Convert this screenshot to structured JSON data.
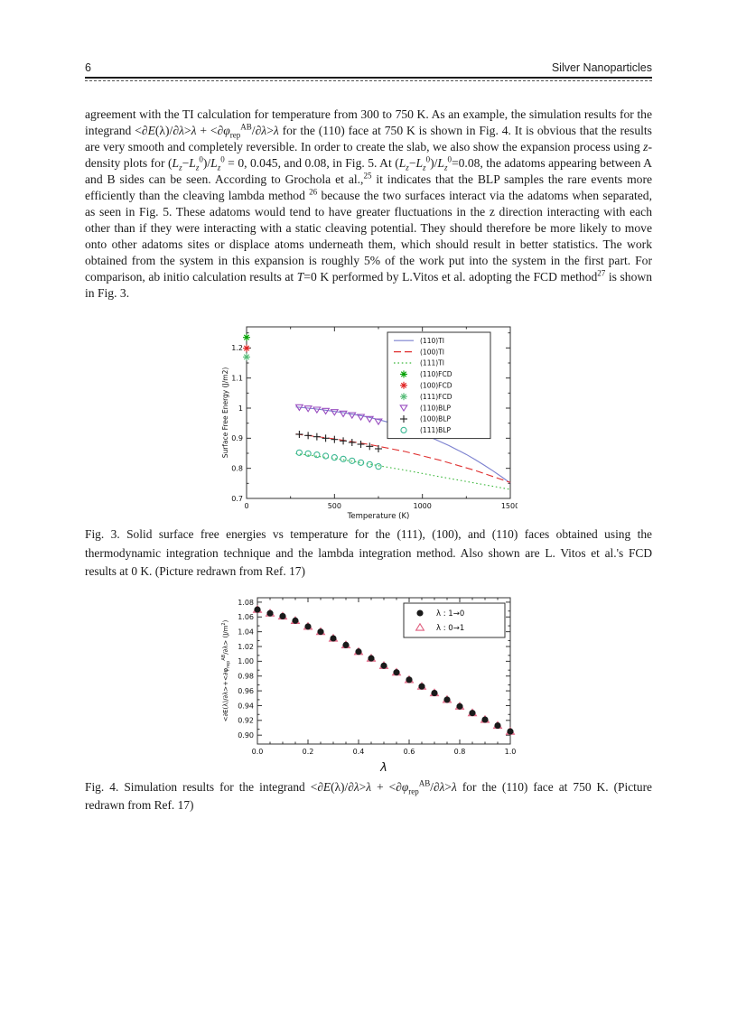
{
  "page": {
    "number": "6",
    "running_title": "Silver Nanoparticles"
  },
  "body": {
    "paragraph_html": "agreement with the TI calculation for temperature from 300 to 750 K. As an example, the simulation results for the integrand &lt;<i>&#8706;E</i>(&#955;)/<i>&#8706;&#955;</i>&gt;<i>&#955;</i> + &lt;<i>&#8706;&#966;</i><sub>rep</sub><sup>AB</sup>/<i>&#8706;&#955;</i>&gt;<i>&#955;</i> for the (110) face at 750 K is shown in Fig. 4. It is obvious that the results are very smooth and completely reversible. In order to create the slab, we also show the expansion process using <i>z</i>-density plots for (<i>L<sub>z</sub></i>&#8722;<i>L<sub>z</sub></i><sup>0</sup>)/<i>L<sub>z</sub></i><sup>0</sup> = 0, 0.045, and 0.08, in Fig. 5. At (<i>L<sub>z</sub></i>&#8722;<i>L<sub>z</sub></i><sup>0</sup>)/<i>L<sub>z</sub></i><sup>0</sup>=0.08, the adatoms appearing between A and B sides can be seen. According to Grochola et al.,<sup>25</sup> it indicates that the BLP samples the rare events more efficiently than the cleaving lambda method <sup>26</sup> because the two surfaces interact via the adatoms when separated, as seen in Fig. 5. These adatoms would tend to have greater fluctuations in the z direction interacting with each other than if they were interacting with a static cleaving potential. They should therefore be more likely to move onto other adatoms sites or displace atoms underneath them, which should result in better statistics. The work obtained from the system in this expansion is roughly 5% of the work put into the system in the first part. For comparison, ab initio calculation results at <i>T</i>=0 K performed by L.Vitos et al. adopting the FCD method<sup>27</sup> is shown in Fig. 3."
  },
  "figures": {
    "fig3": {
      "caption_html": "Fig. 3. Solid surface free energies vs temperature for the (111), (100), and (110) faces obtained using the thermodynamic integration technique and the lambda integration method. Also shown are L. Vitos et al.'s FCD results at 0 K. (Picture redrawn from Ref. 17)"
    },
    "fig4": {
      "caption_html": "Fig. 4. Simulation results for the integrand &lt;<i>&#8706;E</i>(&#955;)/<i>&#8706;&#955;</i>&gt;<i>&#955;</i> + &lt;<i>&#8706;&#966;</i><sub>rep</sub><sup>AB</sup>/<i>&#8706;&#955;</i>&gt;<i>&#955;</i> for the (110) face at 750 K. (Picture redrawn from Ref. 17)"
    }
  },
  "chart_data": [
    {
      "type": "line",
      "title": "",
      "xlabel": "Temperature (K)",
      "ylabel": "Surface Free Energy (J/m2)",
      "xlim": [
        0,
        1500
      ],
      "ylim": [
        0.7,
        1.27
      ],
      "xticks": [
        [
          0,
          "0"
        ],
        [
          500,
          "500"
        ],
        [
          1000,
          "1000"
        ],
        [
          1500,
          "1500"
        ]
      ],
      "yticks": [
        [
          0.7,
          "0.7"
        ],
        [
          0.8,
          "0.8"
        ],
        [
          0.9,
          "0.9"
        ],
        [
          1,
          "1"
        ],
        [
          1.1,
          "1.1"
        ],
        [
          1.2,
          "1.2"
        ]
      ],
      "xminor_step": 250,
      "yminor_step": 0.05,
      "grid": false,
      "legend_position": "top-right",
      "series": [
        {
          "name": "(110)TI",
          "kind": "line",
          "dash": "solid",
          "color": "#7b80cf",
          "x": [
            280,
            350,
            400,
            450,
            500,
            550,
            600,
            650,
            700,
            750,
            800,
            850,
            900,
            950,
            1000,
            1050,
            1100,
            1150,
            1200,
            1250,
            1300,
            1350,
            1400,
            1450,
            1500
          ],
          "y": [
            1.004,
            1.0,
            0.997,
            0.993,
            0.989,
            0.985,
            0.98,
            0.975,
            0.969,
            0.962,
            0.954,
            0.945,
            0.935,
            0.925,
            0.914,
            0.902,
            0.889,
            0.876,
            0.861,
            0.846,
            0.829,
            0.811,
            0.792,
            0.772,
            0.751
          ]
        },
        {
          "name": "(100)TI",
          "kind": "line",
          "dash": "dashed",
          "color": "#e03030",
          "x": [
            280,
            500,
            700,
            900,
            1100,
            1300,
            1500
          ],
          "y": [
            0.914,
            0.898,
            0.879,
            0.856,
            0.827,
            0.793,
            0.753
          ]
        },
        {
          "name": "(111)TI",
          "kind": "line",
          "dash": "dotted",
          "color": "#3cb83c",
          "x": [
            280,
            500,
            700,
            900,
            1100,
            1300,
            1500
          ],
          "y": [
            0.849,
            0.833,
            0.814,
            0.794,
            0.772,
            0.751,
            0.73
          ]
        },
        {
          "name": "(110)FCD",
          "kind": "scatter",
          "marker": "star8",
          "color": "#00a000",
          "size": 4,
          "x": [
            0
          ],
          "y": [
            1.235
          ]
        },
        {
          "name": "(100)FCD",
          "kind": "scatter",
          "marker": "star8",
          "color": "#e02020",
          "size": 4,
          "x": [
            0
          ],
          "y": [
            1.199
          ]
        },
        {
          "name": "(111)FCD",
          "kind": "scatter",
          "marker": "star8",
          "color": "#55bb77",
          "size": 4,
          "x": [
            0
          ],
          "y": [
            1.17
          ]
        },
        {
          "name": "(110)BLP",
          "kind": "scatter",
          "marker": "triangle-down-open",
          "color": "#9a4ec0",
          "size": 3.8,
          "x": [
            300,
            350,
            400,
            450,
            500,
            550,
            600,
            650,
            700,
            750
          ],
          "y": [
            1.003,
            0.999,
            0.995,
            0.991,
            0.987,
            0.982,
            0.977,
            0.971,
            0.964,
            0.956
          ]
        },
        {
          "name": "(100)BLP",
          "kind": "scatter",
          "marker": "plus",
          "color": "#202020",
          "size": 4,
          "x": [
            300,
            350,
            400,
            450,
            500,
            550,
            600,
            650,
            700,
            750
          ],
          "y": [
            0.913,
            0.909,
            0.905,
            0.9,
            0.896,
            0.891,
            0.886,
            0.88,
            0.873,
            0.865
          ]
        },
        {
          "name": "(111)BLP",
          "kind": "scatter",
          "marker": "circle-open",
          "color": "#3db894",
          "size": 3.6,
          "x": [
            300,
            350,
            400,
            450,
            500,
            550,
            600,
            650,
            700,
            750
          ],
          "y": [
            0.852,
            0.849,
            0.845,
            0.841,
            0.836,
            0.831,
            0.825,
            0.819,
            0.813,
            0.806
          ]
        }
      ]
    },
    {
      "type": "scatter",
      "title": "",
      "xlabel": "λ",
      "ylabel": "<∂E(λ)/∂λ>+<∂φ_rep^AB/∂λ> (J/m2)",
      "ylabel_parts": [
        {
          "t": "<∂E(λ)/∂λ>+<∂φ"
        },
        {
          "t": "rep",
          "shift": "sub"
        },
        {
          "t": "AB",
          "shift": "sup"
        },
        {
          "t": "/∂λ> (J/m"
        },
        {
          "t": "2",
          "shift": "sup"
        },
        {
          "t": ")"
        }
      ],
      "xlim": [
        0,
        1
      ],
      "ylim": [
        0.888,
        1.086
      ],
      "xticks": [
        [
          0,
          "0.0"
        ],
        [
          0.2,
          "0.2"
        ],
        [
          0.4,
          "0.4"
        ],
        [
          0.6,
          "0.6"
        ],
        [
          0.8,
          "0.8"
        ],
        [
          1,
          "1.0"
        ]
      ],
      "yticks": [
        [
          0.9,
          "0.90"
        ],
        [
          0.92,
          "0.92"
        ],
        [
          0.94,
          "0.94"
        ],
        [
          0.96,
          "0.96"
        ],
        [
          0.98,
          "0.98"
        ],
        [
          1.0,
          "1.00"
        ],
        [
          1.02,
          "1.02"
        ],
        [
          1.04,
          "1.04"
        ],
        [
          1.06,
          "1.06"
        ],
        [
          1.08,
          "1.08"
        ]
      ],
      "xminor_step": 0.05,
      "yminor_step": 0.01,
      "grid": false,
      "legend_position": "top-right",
      "legend_order": [
        1,
        0
      ],
      "series": [
        {
          "name": "λ : 0→1",
          "kind": "scatter",
          "marker": "triangle-up-open",
          "color": "#e06080",
          "size": 4.4,
          "x": [
            0,
            0.05,
            0.1,
            0.15,
            0.2,
            0.25,
            0.3,
            0.35,
            0.4,
            0.45,
            0.5,
            0.55,
            0.6,
            0.65,
            0.7,
            0.75,
            0.8,
            0.85,
            0.9,
            0.95,
            1.0
          ],
          "y": [
            1.07,
            1.065,
            1.061,
            1.055,
            1.047,
            1.04,
            1.031,
            1.022,
            1.013,
            1.004,
            0.994,
            0.985,
            0.975,
            0.966,
            0.957,
            0.948,
            0.939,
            0.93,
            0.921,
            0.913,
            0.905
          ]
        },
        {
          "name": "λ : 1→0",
          "kind": "scatter",
          "marker": "circle-filled",
          "color": "#1a1a1a",
          "size": 3.6,
          "x": [
            0,
            0.05,
            0.1,
            0.15,
            0.2,
            0.25,
            0.3,
            0.35,
            0.4,
            0.45,
            0.5,
            0.55,
            0.6,
            0.65,
            0.7,
            0.75,
            0.8,
            0.85,
            0.9,
            0.95,
            1.0
          ],
          "y": [
            1.07,
            1.065,
            1.061,
            1.055,
            1.047,
            1.04,
            1.031,
            1.022,
            1.013,
            1.004,
            0.994,
            0.985,
            0.975,
            0.966,
            0.957,
            0.948,
            0.939,
            0.93,
            0.921,
            0.913,
            0.905
          ]
        }
      ]
    }
  ]
}
